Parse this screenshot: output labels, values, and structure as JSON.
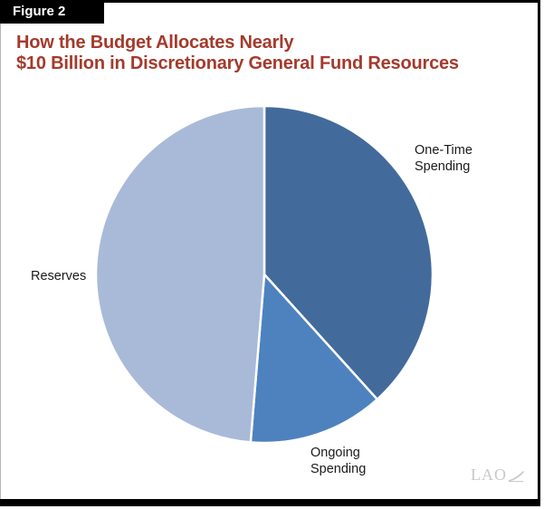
{
  "figure_label": "Figure 2",
  "title": {
    "line1": "How the Budget Allocates Nearly",
    "line2": "$10 Billion in Discretionary General Fund Resources"
  },
  "logo": {
    "text": "LAO"
  },
  "colors": {
    "title_red": "#A43A2C",
    "frame_black": "#000000",
    "tab_text_white": "#FFFFFF",
    "label_text": "#1A1A1A",
    "logo_gray": "#C9C9C9"
  },
  "chart_data": {
    "type": "pie",
    "title": "How the Budget Allocates Nearly $10 Billion in Discretionary General Fund Resources",
    "unit": "percent of discretionary resources (estimated from slice angles)",
    "start_angle_deg": 0,
    "direction": "clockwise",
    "slices": [
      {
        "label": "One-Time Spending",
        "value": 38.3,
        "color": "#426B9C"
      },
      {
        "label": "Ongoing Spending",
        "value": 13.0,
        "color": "#4E82BE"
      },
      {
        "label": "Reserves",
        "value": 48.7,
        "color": "#A9BAD8"
      }
    ],
    "slice_divider": {
      "color": "#FFFFFF",
      "width": 2.5
    },
    "legend": "none; direct text labels beside slices"
  }
}
